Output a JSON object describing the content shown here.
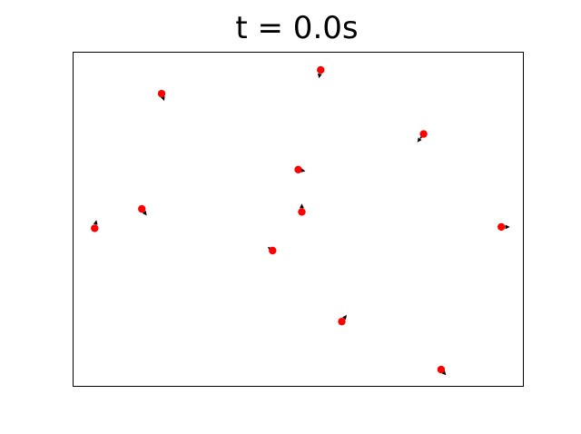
{
  "chart_data": {
    "type": "scatter",
    "title": "t = 0.0s",
    "xlabel": "",
    "ylabel": "",
    "axes_visible": false,
    "grid": false,
    "xlim": [
      0,
      1
    ],
    "ylim": [
      0,
      1
    ],
    "point_color": "#ff0000",
    "arrow_color": "#000000",
    "series": [
      {
        "points": [
          {
            "x": 0.196,
            "y": 0.877,
            "dx": 0.006,
            "dy": -0.022
          },
          {
            "x": 0.55,
            "y": 0.948,
            "dx": -0.004,
            "dy": -0.025
          },
          {
            "x": 0.779,
            "y": 0.756,
            "dx": -0.014,
            "dy": -0.025
          },
          {
            "x": 0.5,
            "y": 0.649,
            "dx": 0.016,
            "dy": -0.005
          },
          {
            "x": 0.152,
            "y": 0.531,
            "dx": 0.011,
            "dy": -0.02
          },
          {
            "x": 0.508,
            "y": 0.522,
            "dx": 0.0,
            "dy": 0.025
          },
          {
            "x": 0.047,
            "y": 0.473,
            "dx": 0.004,
            "dy": 0.025
          },
          {
            "x": 0.952,
            "y": 0.477,
            "dx": 0.019,
            "dy": -0.0
          },
          {
            "x": 0.443,
            "y": 0.406,
            "dx": -0.011,
            "dy": 0.011
          },
          {
            "x": 0.597,
            "y": 0.193,
            "dx": 0.011,
            "dy": 0.02
          },
          {
            "x": 0.818,
            "y": 0.049,
            "dx": 0.011,
            "dy": -0.017
          }
        ]
      }
    ]
  }
}
